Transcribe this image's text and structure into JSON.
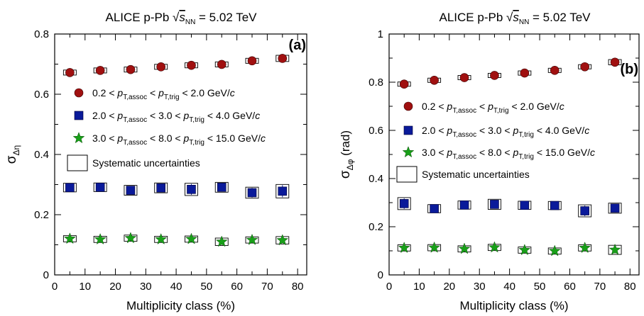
{
  "chart_data": [
    {
      "type": "scatter",
      "title": "ALICE p-Pb √s_NN = 5.02 TeV",
      "title_parts": {
        "prefix": "ALICE p-Pb ",
        "sqrt": "√",
        "s": "s",
        "s_sub": "NN",
        "suffix": " = 5.02 TeV"
      },
      "panel_label": "(a)",
      "xlabel": "Multiplicity class (%)",
      "ylabel": "σ",
      "ylabel_sub": "Δη",
      "xlim": [
        0,
        83
      ],
      "ylim": [
        0,
        0.8
      ],
      "xticks": [
        0,
        10,
        20,
        30,
        40,
        50,
        60,
        70,
        80
      ],
      "xtick_labels": [
        "0",
        "10",
        "20",
        "30",
        "40",
        "50",
        "60",
        "70",
        "80"
      ],
      "yticks": [
        0,
        0.2,
        0.4,
        0.6,
        0.8
      ],
      "ytick_labels": [
        "0",
        "0.2",
        "0.4",
        "0.6",
        "0.8"
      ],
      "x": [
        5,
        15,
        25,
        35,
        45,
        55,
        65,
        75
      ],
      "series": [
        {
          "values": [
            0.672,
            0.679,
            0.682,
            0.691,
            0.696,
            0.699,
            0.711,
            0.719
          ],
          "errors": [
            0.006,
            0.006,
            0.006,
            0.006,
            0.006,
            0.006,
            0.006,
            0.008
          ],
          "marker": "circle",
          "color": "#a01010"
        },
        {
          "values": [
            0.29,
            0.291,
            0.281,
            0.289,
            0.284,
            0.291,
            0.273,
            0.278
          ],
          "errors": [
            0.012,
            0.012,
            0.014,
            0.014,
            0.018,
            0.014,
            0.016,
            0.02
          ],
          "marker": "square",
          "color": "#0a1a9a"
        },
        {
          "values": [
            0.12,
            0.118,
            0.122,
            0.118,
            0.119,
            0.11,
            0.116,
            0.115
          ],
          "errors": [
            0.008,
            0.008,
            0.008,
            0.008,
            0.008,
            0.01,
            0.008,
            0.01
          ],
          "marker": "star",
          "color": "#18a018"
        }
      ],
      "legend": [
        {
          "marker": "circle",
          "color": "#a01010",
          "pre": "0.2 <",
          "p1": "p",
          "sub1": "T,assoc",
          "mid": "<",
          "p2": "p",
          "sub2": "T,trig",
          "post": "< 2.0 GeV/",
          "unit": "c"
        },
        {
          "marker": "square",
          "color": "#0a1a9a",
          "pre": "2.0 <",
          "p1": "p",
          "sub1": "T,assoc",
          "mid": "< 3.0 <",
          "p2": "p",
          "sub2": "T,trig",
          "post": "< 4.0 GeV/",
          "unit": "c"
        },
        {
          "marker": "star",
          "color": "#18a018",
          "pre": "3.0 <",
          "p1": "p",
          "sub1": "T,assoc",
          "mid": "< 8.0 <",
          "p2": "p",
          "sub2": "T,trig",
          "post": "< 15.0 GeV/",
          "unit": "c"
        }
      ],
      "legend_box_label": "Systematic uncertainties",
      "legend_placement": "center-left"
    },
    {
      "type": "scatter",
      "title": "ALICE p-Pb √s_NN = 5.02 TeV",
      "title_parts": {
        "prefix": "ALICE p-Pb ",
        "sqrt": "√",
        "s": "s",
        "s_sub": "NN",
        "suffix": " = 5.02 TeV"
      },
      "panel_label": "(b)",
      "xlabel": "Multiplicity class (%)",
      "ylabel": "σ",
      "ylabel_sub": "Δφ",
      "ylabel_suffix": " (rad)",
      "xlim": [
        0,
        83
      ],
      "ylim": [
        0,
        1.0
      ],
      "xticks": [
        0,
        10,
        20,
        30,
        40,
        50,
        60,
        70,
        80
      ],
      "xtick_labels": [
        "0",
        "10",
        "20",
        "30",
        "40",
        "50",
        "60",
        "70",
        "80"
      ],
      "yticks": [
        0,
        0.2,
        0.4,
        0.6,
        0.8,
        1.0
      ],
      "ytick_labels": [
        "0",
        "0.2",
        "0.4",
        "0.6",
        "0.8",
        "1"
      ],
      "x": [
        5,
        15,
        25,
        35,
        45,
        55,
        65,
        75
      ],
      "series": [
        {
          "values": [
            0.792,
            0.808,
            0.819,
            0.828,
            0.838,
            0.849,
            0.864,
            0.883
          ],
          "errors": [
            0.006,
            0.006,
            0.006,
            0.006,
            0.006,
            0.006,
            0.006,
            0.008
          ],
          "marker": "circle",
          "color": "#a01010"
        },
        {
          "values": [
            0.296,
            0.275,
            0.29,
            0.293,
            0.289,
            0.288,
            0.266,
            0.277
          ],
          "errors": [
            0.022,
            0.014,
            0.014,
            0.018,
            0.014,
            0.014,
            0.022,
            0.018
          ],
          "marker": "square",
          "color": "#0a1a9a"
        },
        {
          "values": [
            0.112,
            0.113,
            0.108,
            0.114,
            0.103,
            0.099,
            0.112,
            0.104
          ],
          "errors": [
            0.01,
            0.01,
            0.01,
            0.01,
            0.01,
            0.01,
            0.01,
            0.016
          ],
          "marker": "star",
          "color": "#18a018"
        }
      ],
      "legend": [
        {
          "marker": "circle",
          "color": "#a01010",
          "pre": "0.2 <",
          "p1": "p",
          "sub1": "T,assoc",
          "mid": "<",
          "p2": "p",
          "sub2": "T,trig",
          "post": "< 2.0 GeV/",
          "unit": "c"
        },
        {
          "marker": "square",
          "color": "#0a1a9a",
          "pre": "2.0 <",
          "p1": "p",
          "sub1": "T,assoc",
          "mid": "< 3.0 <",
          "p2": "p",
          "sub2": "T,trig",
          "post": "< 4.0 GeV/",
          "unit": "c"
        },
        {
          "marker": "star",
          "color": "#18a018",
          "pre": "3.0 <",
          "p1": "p",
          "sub1": "T,assoc",
          "mid": "< 8.0 <",
          "p2": "p",
          "sub2": "T,trig",
          "post": "< 15.0 GeV/",
          "unit": "c"
        }
      ],
      "legend_box_label": "Systematic uncertainties",
      "legend_placement": "center-left"
    }
  ]
}
